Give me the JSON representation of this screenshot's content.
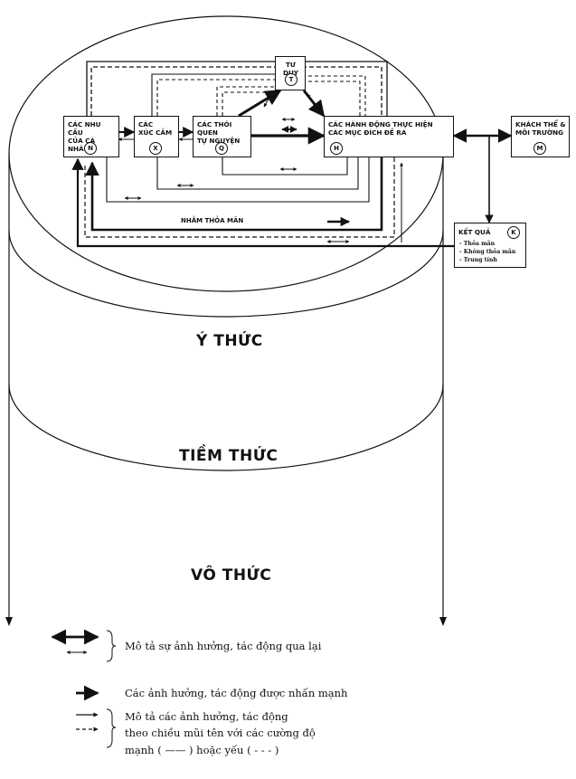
{
  "boxes": {
    "needs": {
      "label": "CÁC NHU CẦU\nCỦA CÁ NHÂN",
      "marker": "N"
    },
    "emotions": {
      "label": "CÁC\nXÚC CẢM",
      "marker": "X"
    },
    "habits": {
      "label": "CÁC THÓI QUEN\nTỰ NGUYỆN",
      "marker": "Q"
    },
    "thinking": {
      "label": "TƯ DUY",
      "marker": "T"
    },
    "actions": {
      "label": "CÁC HÀNH ĐỘNG THỰC HIỆN\nCÁC MỤC ĐÍCH ĐỀ RA",
      "marker": "H"
    },
    "environment": {
      "label": "KHÁCH THỂ &\nMÔI TRƯỜNG",
      "marker": "M"
    },
    "result": {
      "label": "KẾT QUẢ",
      "marker": "K",
      "items": [
        "- Thỏa mãn",
        "- Không thỏa mãn",
        "- Trung tính"
      ]
    }
  },
  "path_label": "NHẰM THỎA MÃN",
  "layers": {
    "conscious": "Ý THỨC",
    "subconscious": "TIỀM THỨC",
    "unconscious": "VÔ THỨC"
  },
  "legend": {
    "mutual": "Mô tả sự ảnh hưởng, tác động qua lại",
    "emphasized": "Các ảnh hưởng, tác động được nhấn mạnh",
    "direction_line1": "Mô tả các ảnh hưởng, tác động",
    "direction_line2": "theo chiều mũi tên với các cường độ",
    "direction_line3": "mạnh ( —— ) hoặc yếu ( - - - )"
  }
}
